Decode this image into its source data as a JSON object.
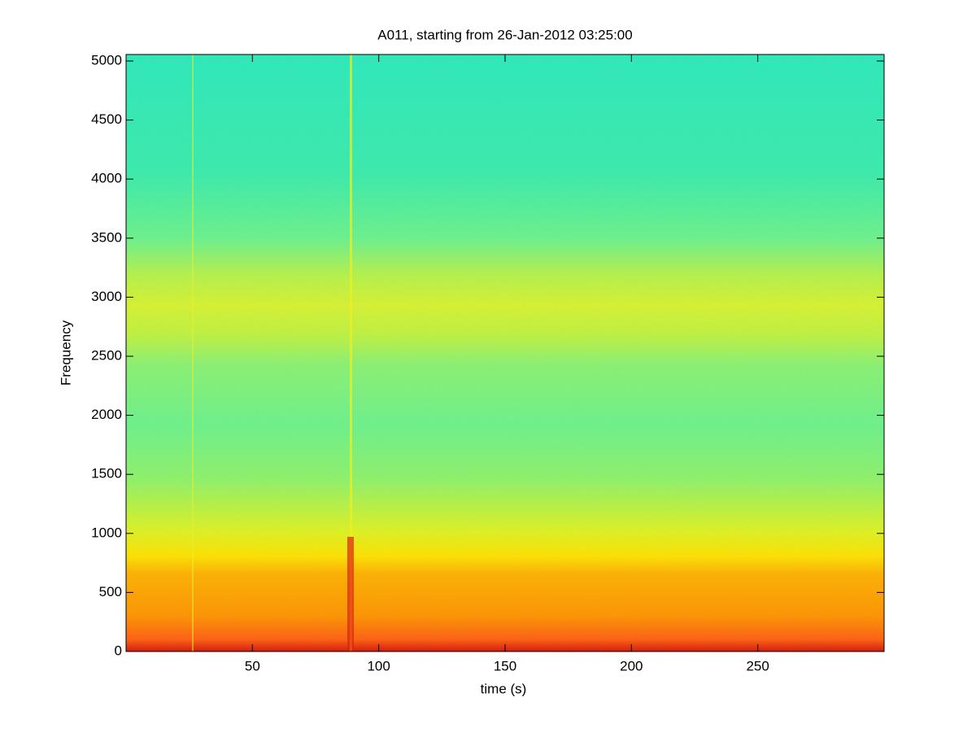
{
  "chart_data": {
    "type": "spectrogram",
    "title": "A011, starting from 26-Jan-2012 03:25:00",
    "x_label": "time (s)",
    "y_label": "Frequency",
    "xlim": [
      0,
      300
    ],
    "xticks": [
      50,
      100,
      150,
      200,
      250
    ],
    "ylim": [
      0,
      5055
    ],
    "yticks": [
      0,
      500,
      1000,
      1500,
      2000,
      2500,
      3000,
      3500,
      4000,
      4500,
      5000
    ]
  }
}
